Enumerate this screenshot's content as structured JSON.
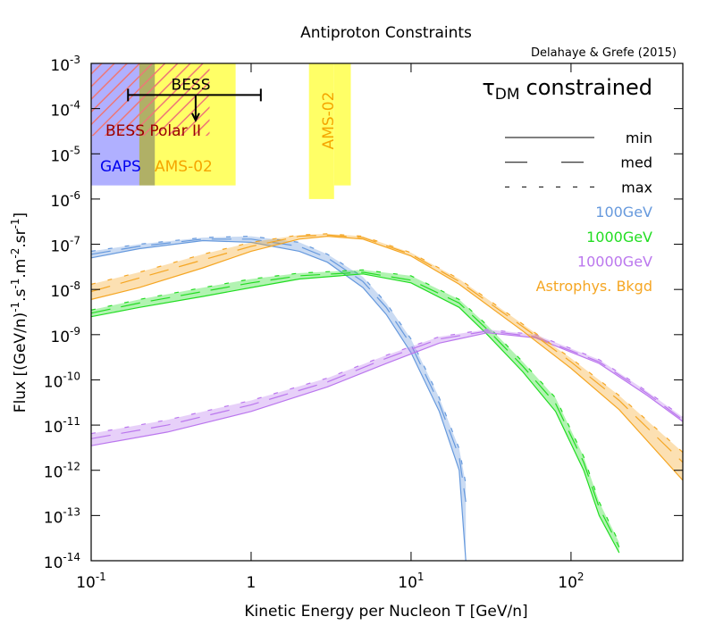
{
  "chart_data": {
    "type": "line",
    "title": "Antiproton Constraints",
    "subtitle": "Delahaye & Grefe (2015)",
    "annotation": {
      "symbol": "τ",
      "sub": "DM",
      "text": "constrained"
    },
    "xlabel": "Kinetic Energy per Nucleon T [GeV/n]",
    "ylabel_parts": [
      {
        "text": "Flux [(GeV/n)"
      },
      {
        "sup": "-1"
      },
      {
        "text": ".s"
      },
      {
        "sup": "-1"
      },
      {
        "text": ".m"
      },
      {
        "sup": "-2"
      },
      {
        "text": ".sr"
      },
      {
        "sup": "-1"
      },
      {
        "text": "]"
      }
    ],
    "xscale": "log",
    "yscale": "log",
    "xlim": [
      0.1,
      500
    ],
    "ylim": [
      1e-14,
      0.001
    ],
    "xticks": [
      {
        "value": 0.1,
        "label": "10",
        "exp": "-1"
      },
      1,
      {
        "value": 10,
        "label": "10",
        "exp": "1"
      },
      {
        "value": 100,
        "label": "10",
        "exp": "2"
      }
    ],
    "yticks": [
      {
        "value": 1e-14,
        "label": "10",
        "exp": "-14"
      },
      {
        "value": 1e-13,
        "label": "10",
        "exp": "-13"
      },
      {
        "value": 1e-12,
        "label": "10",
        "exp": "-12"
      },
      {
        "value": 1e-11,
        "label": "10",
        "exp": "-11"
      },
      {
        "value": 1e-10,
        "label": "10",
        "exp": "-10"
      },
      {
        "value": 1e-09,
        "label": "10",
        "exp": "-9"
      },
      {
        "value": 1e-08,
        "label": "10",
        "exp": "-8"
      },
      {
        "value": 1e-07,
        "label": "10",
        "exp": "-7"
      },
      {
        "value": 1e-06,
        "label": "10",
        "exp": "-6"
      },
      {
        "value": 1e-05,
        "label": "10",
        "exp": "-5"
      },
      {
        "value": 0.0001,
        "label": "10",
        "exp": "-4"
      },
      {
        "value": 0.001,
        "label": "10",
        "exp": "-3"
      }
    ],
    "line_styles": [
      {
        "label": "min",
        "dash": "solid"
      },
      {
        "label": "med",
        "dash": "dashed"
      },
      {
        "label": "max",
        "dash": "dotted"
      }
    ],
    "regions": [
      {
        "label": "AMS-02",
        "x": [
          0.2,
          0.8
        ],
        "y": [
          2e-06,
          0.001
        ],
        "color": "#ffff66",
        "label_color": "#f5a500",
        "style": "fill"
      },
      {
        "label": "GAPS",
        "x": [
          0.1,
          0.25
        ],
        "y": [
          2e-06,
          0.001
        ],
        "color": "#b0b0ff",
        "label_color": "#0000ee",
        "style": "multiply"
      },
      {
        "label": "BESS Polar II",
        "x": [
          0.1,
          0.55
        ],
        "y": [
          2.5e-05,
          0.001
        ],
        "color": "#ee7777",
        "label_color": "#990000",
        "style": "hatch"
      },
      {
        "label": "AMS-02",
        "x": [
          2.3,
          3.3
        ],
        "y": [
          1e-06,
          0.001
        ],
        "color": "#ffff66",
        "label_color": "#f5a500",
        "style": "fill"
      },
      {
        "x": [
          3.3,
          4.2
        ],
        "y": [
          2e-06,
          0.001
        ],
        "color": "#ffff66",
        "style": "fill"
      }
    ],
    "bess": {
      "label": "BESS",
      "x": [
        0.17,
        1.15
      ],
      "y": 0.0002,
      "arrow_x": 0.45,
      "arrow_to": 5.5e-05
    },
    "series": [
      {
        "name": "100GeV",
        "color": "#6699dd",
        "x": [
          0.1,
          0.2,
          0.5,
          1,
          2,
          3,
          5,
          7,
          10,
          15,
          20,
          22
        ],
        "min": [
          5e-08,
          8e-08,
          1.2e-07,
          1.1e-07,
          7e-08,
          4e-08,
          1.1e-08,
          2.8e-09,
          4e-10,
          2e-11,
          1e-12,
          1e-14
        ],
        "med": [
          6e-08,
          9e-08,
          1.3e-07,
          1.3e-07,
          9e-08,
          5e-08,
          1.5e-08,
          4e-09,
          6e-10,
          3e-11,
          2e-12,
          2e-13
        ],
        "max": [
          7e-08,
          1e-07,
          1.4e-07,
          1.5e-07,
          1.1e-07,
          6e-08,
          1.9e-08,
          5e-09,
          8e-10,
          4e-11,
          3e-12,
          5e-13
        ]
      },
      {
        "name": "1000GeV",
        "color": "#22dd22",
        "x": [
          0.1,
          0.2,
          0.5,
          1,
          2,
          5,
          10,
          20,
          30,
          50,
          80,
          120,
          150,
          200
        ],
        "min": [
          2.5e-09,
          4e-09,
          7e-09,
          1.1e-08,
          1.7e-08,
          2.2e-08,
          1.4e-08,
          4e-09,
          1e-09,
          1.5e-10,
          2e-11,
          1e-12,
          1e-13,
          1.5e-14
        ],
        "med": [
          3e-09,
          5e-09,
          9e-09,
          1.4e-08,
          2e-08,
          2.4e-08,
          1.6e-08,
          5e-09,
          1.3e-09,
          2e-10,
          3e-11,
          1.5e-12,
          1.5e-13,
          2e-14
        ],
        "max": [
          3.5e-09,
          6e-09,
          1.1e-08,
          1.7e-08,
          2.3e-08,
          2.7e-08,
          2e-08,
          6e-09,
          1.6e-09,
          2.5e-10,
          4e-11,
          2e-12,
          2e-13,
          2.5e-14
        ]
      },
      {
        "name": "10000GeV",
        "color": "#bb77ee",
        "x": [
          0.1,
          0.3,
          1,
          3,
          7,
          15,
          30,
          60,
          150,
          300,
          500
        ],
        "min": [
          3.5e-12,
          7e-12,
          2e-11,
          7e-11,
          2.3e-10,
          6.5e-10,
          1.1e-09,
          8.5e-10,
          2.3e-10,
          4.5e-11,
          1.2e-11
        ],
        "med": [
          5e-12,
          1e-11,
          2.8e-11,
          9e-11,
          3e-10,
          8e-10,
          1.2e-09,
          9e-10,
          2.5e-10,
          5e-11,
          1.3e-11
        ],
        "max": [
          6.5e-12,
          1.3e-11,
          3.5e-11,
          1.1e-10,
          3.5e-10,
          9e-10,
          1.3e-09,
          1e-09,
          2.8e-10,
          5.5e-11,
          1.5e-11
        ]
      },
      {
        "name": "Astrophys. Bkgd",
        "color": "#f5a623",
        "x": [
          0.1,
          0.2,
          0.5,
          1,
          2,
          3,
          5,
          10,
          20,
          50,
          100,
          200,
          500
        ],
        "min": [
          6e-09,
          1.1e-08,
          3e-08,
          7e-08,
          1.3e-07,
          1.5e-07,
          1.3e-07,
          5.5e-08,
          1.3e-08,
          1.2e-09,
          1.8e-10,
          2.2e-11,
          6e-13
        ],
        "med": [
          9e-09,
          1.8e-08,
          4.5e-08,
          9e-08,
          1.5e-07,
          1.6e-07,
          1.4e-07,
          6e-08,
          1.5e-08,
          1.5e-09,
          2.5e-10,
          3.5e-11,
          1.5e-12
        ],
        "max": [
          1.3e-08,
          2.4e-08,
          6e-08,
          1.1e-07,
          1.6e-07,
          1.7e-07,
          1.5e-07,
          6.5e-08,
          1.7e-08,
          1.7e-09,
          3e-10,
          4.5e-11,
          2.5e-12
        ]
      }
    ]
  }
}
